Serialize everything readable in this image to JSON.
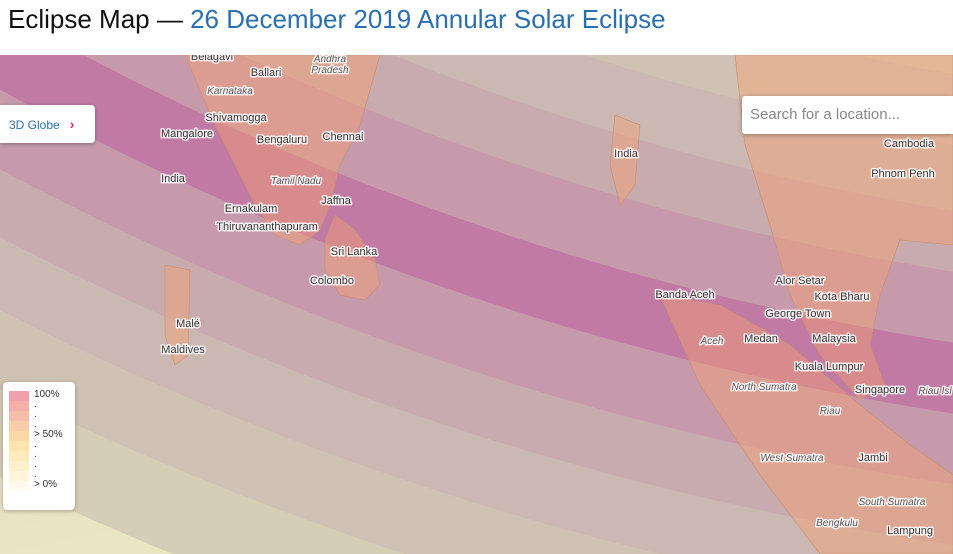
{
  "header": {
    "title": "Eclipse Map —",
    "eclipse": "26 December 2019 Annular Solar Eclipse"
  },
  "globe_button": "3D Globe",
  "search_placeholder": "Search for a location...",
  "places": [
    "Belagavi",
    "Ballari",
    "Andhra",
    "Pradesh",
    "Karnataka",
    "Shivamogga",
    "Mangalore",
    "Bengaluru",
    "Chennai",
    "India",
    "Tamil Nadu",
    "Jaffna",
    "Ernakulam",
    "Thiruvananthapuram",
    "Sri Lanka",
    "Colombo",
    "Malé",
    "Maldives",
    "India",
    "Cambodia",
    "Phnom Penh",
    "Banda Aceh",
    "Alor Setar",
    "Kota Bharu",
    "George Town",
    "Malaysia",
    "Medan",
    "Aceh",
    "Kuala Lumpur",
    "Singapore",
    "Riau Isl",
    "North Sumatra",
    "Riau",
    "West Sumatra",
    "Jambi",
    "South Sumatra",
    "Bengkulu",
    "Lampung"
  ],
  "legend": [
    "100%",
    ".",
    ".",
    ".",
    "> 50%",
    ".",
    ".",
    ".",
    ".",
    "> 0%"
  ]
}
